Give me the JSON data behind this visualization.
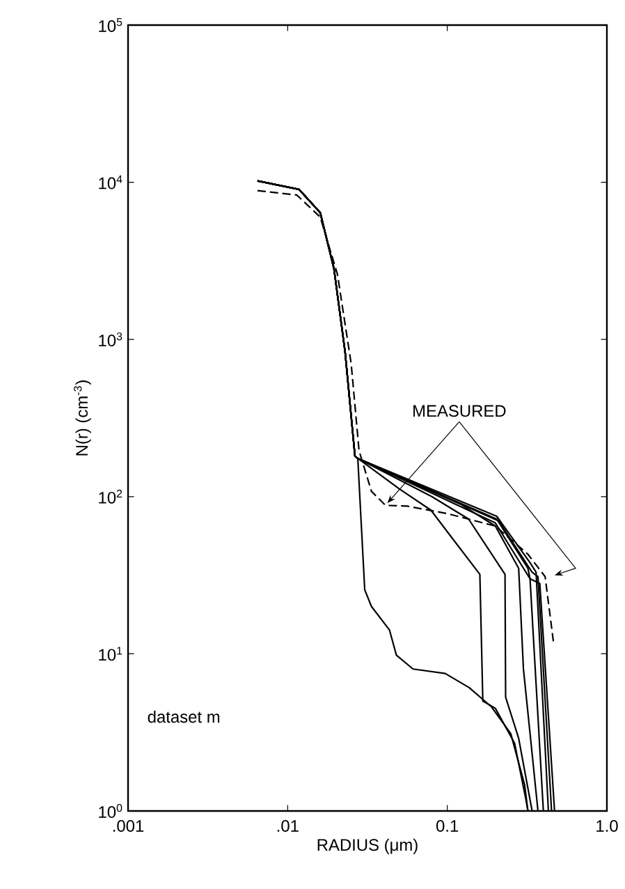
{
  "chart_data": {
    "type": "line",
    "xlabel": "RADIUS (μm)",
    "ylabel": "N(r)  (cm$^{-3}$)",
    "log": "xy",
    "grid": false,
    "marker": "none",
    "xlim": [
      0.001,
      1
    ],
    "ylim": [
      1,
      100000
    ],
    "xticks": [
      {
        "value": 0.001,
        "label": ".001"
      },
      {
        "value": 0.01,
        "label": ".01"
      },
      {
        "value": 0.1,
        "label": "0.1"
      },
      {
        "value": 1,
        "label": "1.0"
      }
    ],
    "yticks": [
      {
        "value": 1,
        "label": "10$^{0}$"
      },
      {
        "value": 10,
        "label": "10$^{1}$"
      },
      {
        "value": 100,
        "label": "10$^{2}$"
      },
      {
        "value": 1000,
        "label": "10$^{3}$"
      },
      {
        "value": 10000,
        "label": "10$^{4}$"
      },
      {
        "value": 100000,
        "label": "10$^{5}$"
      }
    ],
    "annotations": [
      {
        "text": "MEASURED",
        "x": 0.041,
        "y": 88
      },
      "dataset m"
    ],
    "series": [
      {
        "color": "#000000",
        "line_style": "solid",
        "x": [
          0.00647,
          0.0118,
          0.016,
          0.0195,
          0.0229,
          0.0264,
          0.0275,
          0.0304,
          0.0335,
          0.0434,
          0.048,
          0.061,
          0.097,
          0.137,
          0.189,
          0.25,
          0.305,
          0.32
        ],
        "values": [
          10200,
          9000,
          6400,
          2820,
          830,
          181,
          175,
          25.5,
          20,
          14.2,
          9.8,
          8,
          7.5,
          6.1,
          4.6,
          3.1,
          1.47,
          1
        ]
      },
      {
        "color": "#000000",
        "line_style": "solid",
        "x": [
          0.00647,
          0.0118,
          0.016,
          0.0195,
          0.0229,
          0.0264,
          0.0275,
          0.05,
          0.079,
          0.101,
          0.16,
          0.167,
          0.2,
          0.264,
          0.31,
          0.32
        ],
        "values": [
          10200,
          9000,
          6400,
          2820,
          830,
          181,
          175,
          112,
          82,
          59,
          32,
          5,
          4.5,
          2.7,
          1.2,
          1
        ]
      },
      {
        "color": "#000000",
        "line_style": "solid",
        "x": [
          0.00647,
          0.0118,
          0.016,
          0.0195,
          0.0229,
          0.0264,
          0.0275,
          0.08,
          0.136,
          0.23,
          0.232,
          0.28,
          0.34
        ],
        "values": [
          10200,
          9000,
          6400,
          2820,
          830,
          181,
          175,
          100,
          72,
          32,
          5.3,
          2.9,
          1
        ]
      },
      {
        "color": "#000000",
        "line_style": "solid",
        "x": [
          0.00647,
          0.0118,
          0.016,
          0.0195,
          0.0229,
          0.0264,
          0.0275,
          0.12,
          0.2,
          0.28,
          0.3,
          0.37
        ],
        "values": [
          10200,
          9000,
          6400,
          2820,
          830,
          181,
          175,
          90,
          65,
          35,
          8,
          1
        ]
      },
      {
        "color": "#000000",
        "line_style": "solid",
        "x": [
          0.00647,
          0.0118,
          0.016,
          0.0195,
          0.0229,
          0.0264,
          0.0275,
          0.204,
          0.32,
          0.33,
          0.4
        ],
        "values": [
          10200,
          9000,
          6400,
          2820,
          830,
          181,
          175,
          72,
          35,
          30,
          1
        ]
      },
      {
        "color": "#000000",
        "line_style": "solid",
        "x": [
          0.00647,
          0.0118,
          0.016,
          0.0195,
          0.0229,
          0.0264,
          0.0275,
          0.204,
          0.33,
          0.36,
          0.43
        ],
        "values": [
          10200,
          9000,
          6400,
          2820,
          830,
          181,
          175,
          75,
          38,
          33,
          1
        ]
      },
      {
        "color": "#000000",
        "line_style": "solid",
        "x": [
          0.00647,
          0.0118,
          0.016,
          0.0195,
          0.0229,
          0.0264,
          0.0275,
          0.21,
          0.34,
          0.37,
          0.45
        ],
        "values": [
          10200,
          9000,
          6400,
          2820,
          830,
          181,
          175,
          70,
          33,
          31,
          1
        ]
      },
      {
        "color": "#000000",
        "line_style": "solid",
        "x": [
          0.00647,
          0.0118,
          0.016,
          0.0195,
          0.0229,
          0.0264,
          0.0275,
          0.2,
          0.33,
          0.38,
          0.47
        ],
        "values": [
          10200,
          9000,
          6400,
          2820,
          830,
          181,
          175,
          68,
          30,
          28,
          1
        ]
      },
      {
        "color": "#000000",
        "line_style": "dashed",
        "x": [
          0.00647,
          0.0114,
          0.016,
          0.0205,
          0.025,
          0.028,
          0.0335,
          0.041,
          0.056,
          0.1,
          0.2,
          0.32,
          0.41,
          0.465
        ],
        "values": [
          8850,
          8300,
          6000,
          2600,
          700,
          196,
          108,
          88,
          87,
          78,
          65,
          43,
          31,
          11.4
        ]
      }
    ]
  }
}
